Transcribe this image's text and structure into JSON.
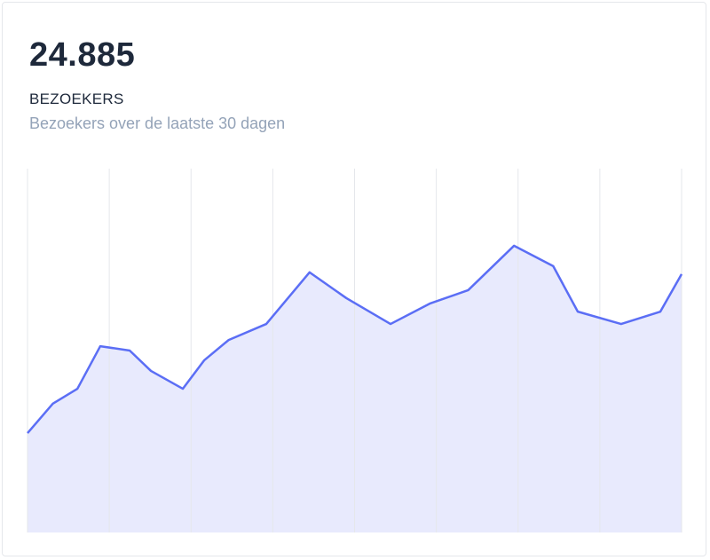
{
  "stat": {
    "value": "24.885",
    "label": "BEZOEKERS",
    "subtitle": "Bezoekers over de laatste 30 dagen"
  },
  "chart_data": {
    "type": "area",
    "title": "",
    "xlabel": "",
    "ylabel": "",
    "grid": "vertical",
    "xlim": [
      0,
      8
    ],
    "ylim": [
      0,
      100
    ],
    "gridlines_x": [
      0,
      1,
      2,
      3,
      4,
      5,
      6,
      7,
      8
    ],
    "series": [
      {
        "x": [
          0,
          0.31,
          0.61,
          0.89,
          1.25,
          1.51,
          1.9,
          2.16,
          2.46,
          2.92,
          3.45,
          3.9,
          4.44,
          4.92,
          5.39,
          5.95,
          6.43,
          6.73,
          7.26,
          7.74,
          8.0
        ],
        "y": [
          27.3,
          35.4,
          39.5,
          51.2,
          50.0,
          44.4,
          39.5,
          47.3,
          52.9,
          57.3,
          71.5,
          64.4,
          57.3,
          62.9,
          66.6,
          78.8,
          73.2,
          60.7,
          57.3,
          60.7,
          71.0
        ]
      }
    ],
    "colors": {
      "line": "#5b6ef5",
      "fill": "#e8eafd",
      "grid": "#e5e7eb"
    }
  }
}
